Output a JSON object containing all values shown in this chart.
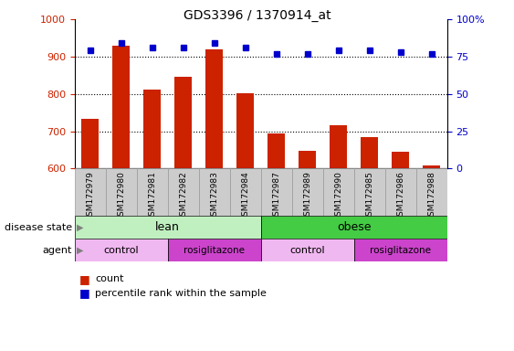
{
  "title": "GDS3396 / 1370914_at",
  "samples": [
    "GSM172979",
    "GSM172980",
    "GSM172981",
    "GSM172982",
    "GSM172983",
    "GSM172984",
    "GSM172987",
    "GSM172989",
    "GSM172990",
    "GSM172985",
    "GSM172986",
    "GSM172988"
  ],
  "counts": [
    733,
    930,
    812,
    845,
    920,
    802,
    695,
    648,
    715,
    683,
    645,
    608
  ],
  "percentiles": [
    79,
    84,
    81,
    81,
    84,
    81,
    77,
    77,
    79,
    79,
    78,
    77
  ],
  "bar_color": "#cc2200",
  "dot_color": "#0000cc",
  "ylim_left": [
    600,
    1000
  ],
  "ylim_right": [
    0,
    100
  ],
  "yticks_left": [
    600,
    700,
    800,
    900,
    1000
  ],
  "yticks_right": [
    0,
    25,
    50,
    75,
    100
  ],
  "dotted_lines": [
    700,
    800,
    900
  ],
  "lean_color": "#c0f0c0",
  "obese_color": "#44cc44",
  "control_color": "#f0b8f0",
  "rosi_color": "#cc44cc",
  "xticklabel_bg": "#cccccc",
  "xticklabel_border": "#999999"
}
